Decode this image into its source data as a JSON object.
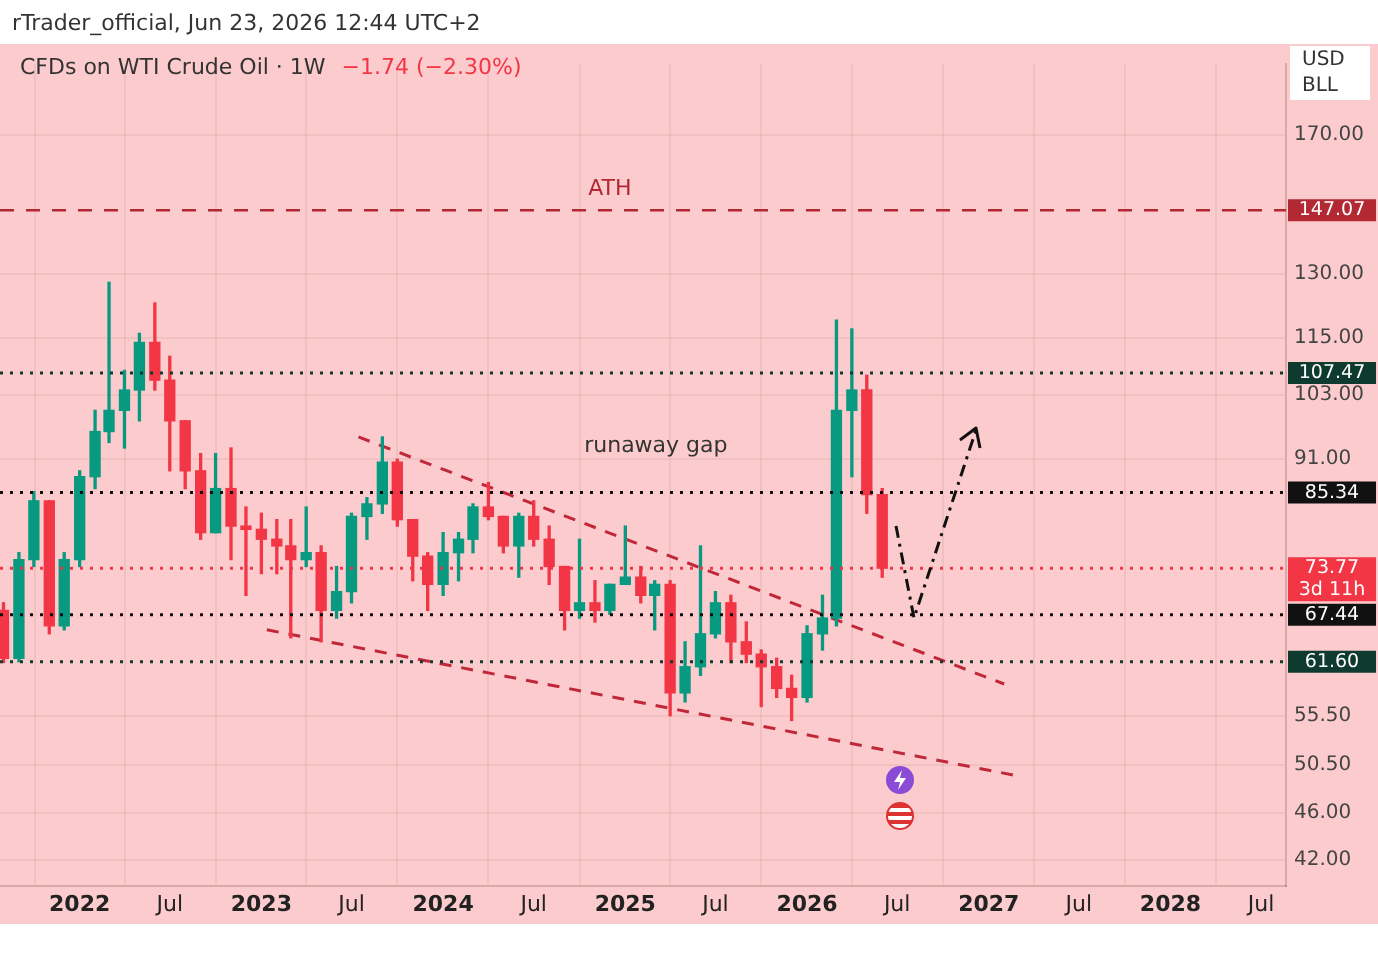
{
  "chart_data": {
    "type": "candlestick",
    "title": "CFDs on WTI Crude Oil · 1W",
    "subtitle": "−1.74 (−2.30%)",
    "annotations": [
      "rTrader_official, Jun 23, 2026 12:44 UTC+2",
      "USD",
      "BLL",
      "3d 11h",
      "runaway gap",
      {
        "text": "ATH",
        "x": "2024-12",
        "y": 147.07
      }
    ],
    "x": [
      "2021-08",
      "2021-09",
      "2021-10",
      "2021-11",
      "2021-12",
      "2022-01",
      "2022-02",
      "2022-03",
      "2022-04",
      "2022-05",
      "2022-06",
      "2022-07",
      "2022-08",
      "2022-09",
      "2022-10",
      "2022-11",
      "2022-12",
      "2023-01",
      "2023-02",
      "2023-03",
      "2023-04",
      "2023-05",
      "2023-06",
      "2023-07",
      "2023-08",
      "2023-09",
      "2023-10",
      "2023-11",
      "2023-12",
      "2024-01",
      "2024-02",
      "2024-03",
      "2024-04",
      "2024-05",
      "2024-06",
      "2024-07",
      "2024-08",
      "2024-09",
      "2024-10",
      "2024-11",
      "2024-12",
      "2025-01",
      "2025-02",
      "2025-03",
      "2025-04",
      "2025-05",
      "2025-06",
      "2025-07",
      "2025-08",
      "2025-09",
      "2025-10",
      "2025-11",
      "2025-12",
      "2026-01",
      "2026-02",
      "2026-03",
      "2026-04",
      "2026-05",
      "2026-06"
    ],
    "ohlc": [
      [
        68,
        69,
        61.5,
        62
      ],
      [
        62,
        76,
        61.6,
        75
      ],
      [
        75,
        85.5,
        74,
        84
      ],
      [
        84,
        84,
        65,
        66
      ],
      [
        66,
        76,
        65.5,
        75
      ],
      [
        75,
        89,
        74,
        88
      ],
      [
        88,
        100,
        86,
        96
      ],
      [
        96,
        128,
        94,
        100
      ],
      [
        100,
        108,
        93,
        104
      ],
      [
        104,
        116,
        98,
        114
      ],
      [
        114,
        123,
        104,
        106
      ],
      [
        106,
        111,
        89,
        98
      ],
      [
        98,
        98,
        86,
        89
      ],
      [
        89,
        92,
        78,
        79
      ],
      [
        79,
        92,
        79,
        86
      ],
      [
        86,
        93,
        75,
        80
      ],
      [
        80,
        83,
        70,
        79.5
      ],
      [
        79.5,
        82,
        73,
        78
      ],
      [
        78,
        81,
        73,
        77
      ],
      [
        77,
        81,
        64.5,
        75
      ],
      [
        75,
        83,
        74,
        76
      ],
      [
        76,
        77,
        64,
        68
      ],
      [
        68,
        74,
        67,
        70.5
      ],
      [
        70.5,
        82,
        69,
        81.5
      ],
      [
        81.5,
        84.5,
        78,
        83.5
      ],
      [
        83.5,
        95,
        82,
        90.5
      ],
      [
        90.5,
        91,
        80,
        81
      ],
      [
        81,
        81,
        72,
        75.5
      ],
      [
        75.5,
        76,
        68,
        71.5
      ],
      [
        71.5,
        79,
        70,
        76
      ],
      [
        76,
        79,
        72,
        78
      ],
      [
        78,
        83.5,
        76,
        83
      ],
      [
        83,
        87,
        81,
        81.5
      ],
      [
        81.5,
        81.5,
        76,
        77
      ],
      [
        77,
        82,
        72.5,
        81.5
      ],
      [
        81.5,
        84,
        77,
        78
      ],
      [
        78,
        80,
        71.5,
        74
      ],
      [
        74,
        74,
        65.5,
        68
      ],
      [
        68,
        78,
        67,
        69
      ],
      [
        69,
        72,
        66.5,
        68
      ],
      [
        68,
        71.5,
        67.5,
        71.5
      ],
      [
        71.5,
        80,
        71.5,
        72.5
      ],
      [
        72.5,
        74,
        69,
        70
      ],
      [
        70,
        72,
        65.5,
        71.5
      ],
      [
        71.5,
        72,
        55.5,
        58
      ],
      [
        58,
        64,
        57,
        61
      ],
      [
        61,
        77,
        60,
        65
      ],
      [
        65,
        70.5,
        64.5,
        69
      ],
      [
        69,
        70,
        61.5,
        64
      ],
      [
        64,
        66.5,
        61.5,
        62.5
      ],
      [
        62.5,
        63,
        56.5,
        61
      ],
      [
        61,
        62,
        57.5,
        58.5
      ],
      [
        58.5,
        60,
        55,
        57.5
      ],
      [
        57.5,
        66,
        57,
        65
      ],
      [
        65,
        70,
        63,
        67
      ],
      [
        67,
        119,
        66,
        100
      ],
      [
        100,
        117,
        88,
        104
      ],
      [
        104,
        107,
        82,
        85
      ],
      [
        85,
        86,
        72.5,
        73.77
      ]
    ],
    "colors": [
      "#f23645",
      "#089981",
      "#089981",
      "#f23645",
      "#089981",
      "#089981",
      "#089981",
      "#089981",
      "#089981",
      "#089981",
      "#f23645",
      "#f23645",
      "#f23645",
      "#f23645",
      "#089981",
      "#f23645",
      "#f23645",
      "#f23645",
      "#f23645",
      "#f23645",
      "#089981",
      "#f23645",
      "#089981",
      "#089981",
      "#089981",
      "#089981",
      "#f23645",
      "#f23645",
      "#f23645",
      "#089981",
      "#089981",
      "#089981",
      "#f23645",
      "#f23645",
      "#089981",
      "#f23645",
      "#f23645",
      "#f23645",
      "#089981",
      "#f23645",
      "#089981",
      "#089981",
      "#f23645",
      "#089981",
      "#f23645",
      "#089981",
      "#089981",
      "#089981",
      "#f23645",
      "#f23645",
      "#f23645",
      "#f23645",
      "#f23645",
      "#089981",
      "#089981",
      "#089981",
      "#089981",
      "#f23645",
      "#f23645"
    ],
    "series": [
      {
        "type": "line",
        "x": [
          "2023-07-15",
          "2027-02-01"
        ],
        "values": [
          95,
          59
        ],
        "color": "#c0283a",
        "line_style": "dashed"
      },
      {
        "type": "line",
        "x": [
          "2023-01-12",
          "2027-02-20"
        ],
        "values": [
          65.5,
          49.5
        ],
        "color": "#c0283a",
        "line_style": "dashed"
      }
    ],
    "ref_lines": [
      {
        "axis": "y",
        "value": 147.07,
        "label": "147.07",
        "color": "#b22833",
        "line_style": "dashed"
      },
      {
        "axis": "y",
        "value": 107.47,
        "label": "107.47",
        "color": "#0e3b2e",
        "line_style": "dotted"
      },
      {
        "axis": "y",
        "value": 85.34,
        "label": "85.34",
        "color": "#111111",
        "line_style": "dotted"
      },
      {
        "axis": "y",
        "value": 73.77,
        "label": "73.77",
        "color": "#f23645",
        "line_style": "dotted"
      },
      {
        "axis": "y",
        "value": 67.44,
        "label": "67.44",
        "color": "#111111",
        "line_style": "dotted"
      },
      {
        "axis": "y",
        "value": 61.6,
        "label": "61.60",
        "color": "#0e3b2e",
        "line_style": "dotted"
      }
    ],
    "xlim": [
      "2021-07-25",
      "2028-08-20"
    ],
    "xticks": [
      {
        "value": "2022-01-01",
        "label": "2022"
      },
      {
        "value": "2022-07-01",
        "label": "Jul"
      },
      {
        "value": "2023-01-01",
        "label": "2023"
      },
      {
        "value": "2023-07-01",
        "label": "Jul"
      },
      {
        "value": "2024-01-01",
        "label": "2024"
      },
      {
        "value": "2024-07-01",
        "label": "Jul"
      },
      {
        "value": "2025-01-01",
        "label": "2025"
      },
      {
        "value": "2025-07-01",
        "label": "Jul"
      },
      {
        "value": "2026-01-01",
        "label": "2026"
      },
      {
        "value": "2026-07-01",
        "label": "Jul"
      },
      {
        "value": "2027-01-01",
        "label": "2027"
      },
      {
        "value": "2027-07-01",
        "label": "Jul"
      },
      {
        "value": "2028-01-01",
        "label": "2028"
      },
      {
        "value": "2028-07-01",
        "label": "Jul"
      }
    ],
    "ylim": [
      40,
      195
    ],
    "log": true,
    "yticks": [
      {
        "value": 42,
        "label": "42.00"
      },
      {
        "value": 46,
        "label": "46.00"
      },
      {
        "value": 50.5,
        "label": "50.50"
      },
      {
        "value": 55.5,
        "label": "55.50"
      },
      {
        "value": 91,
        "label": "91.00"
      },
      {
        "value": 103,
        "label": "103.00"
      },
      {
        "value": 115,
        "label": "115.00"
      },
      {
        "value": 130,
        "label": "130.00"
      },
      {
        "value": 170,
        "label": "170.00"
      }
    ],
    "grid": true
  }
}
